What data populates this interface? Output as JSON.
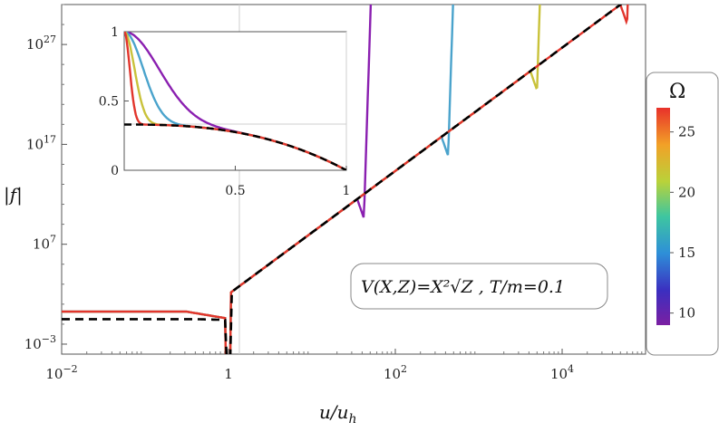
{
  "chart_data": {
    "type": "line",
    "xlabel": "u/u_h",
    "ylabel": "|f|",
    "x_scale": "log",
    "y_scale": "log",
    "xlim": [
      0.01,
      100000
    ],
    "ylim_log10": [
      -4,
      31
    ],
    "xticks": [
      {
        "value": 0.01,
        "label": "10",
        "sup": "−2"
      },
      {
        "value": 1,
        "label": "1",
        "sup": ""
      },
      {
        "value": 100,
        "label": "10",
        "sup": "2"
      },
      {
        "value": 10000,
        "label": "10",
        "sup": "4"
      }
    ],
    "yticks": [
      {
        "value_log10": -3,
        "label": "10",
        "sup": "−3"
      },
      {
        "value_log10": 7,
        "label": "10",
        "sup": "7"
      },
      {
        "value_log10": 17,
        "label": "10",
        "sup": "17"
      },
      {
        "value_log10": 27,
        "label": "10",
        "sup": "27"
      }
    ],
    "grid": "x=1 only",
    "annotation": "V(X,Z)=X²√Z , T/m=0.1",
    "colorbar": {
      "title": "Ω",
      "range": [
        9,
        27
      ],
      "ticks": [
        "10",
        "15",
        "20",
        "25"
      ],
      "colors": [
        "#7b1fa2",
        "#3b2fc0",
        "#2e8fd8",
        "#3ec6a0",
        "#b9d23a",
        "#f2a127",
        "#e8312a"
      ]
    },
    "series": [
      {
        "omega": 10,
        "color": "#8a1fb0",
        "blowup_u": 42
      },
      {
        "omega": 15,
        "color": "#4aa3cc",
        "blowup_u": 430
      },
      {
        "omega": 20,
        "color": "#c9c23a",
        "blowup_u": 5000
      },
      {
        "omega": 25,
        "color": "#e2352c",
        "blowup_u": 60000
      },
      {
        "label": "",
        "color": "#000000",
        "dashed": true
      }
    ],
    "inset": {
      "xlim": [
        0,
        1
      ],
      "ylim": [
        0,
        1
      ],
      "xticks": [
        "0.5",
        "1"
      ],
      "yticks": [
        "0",
        "0.5",
        "1"
      ]
    }
  }
}
